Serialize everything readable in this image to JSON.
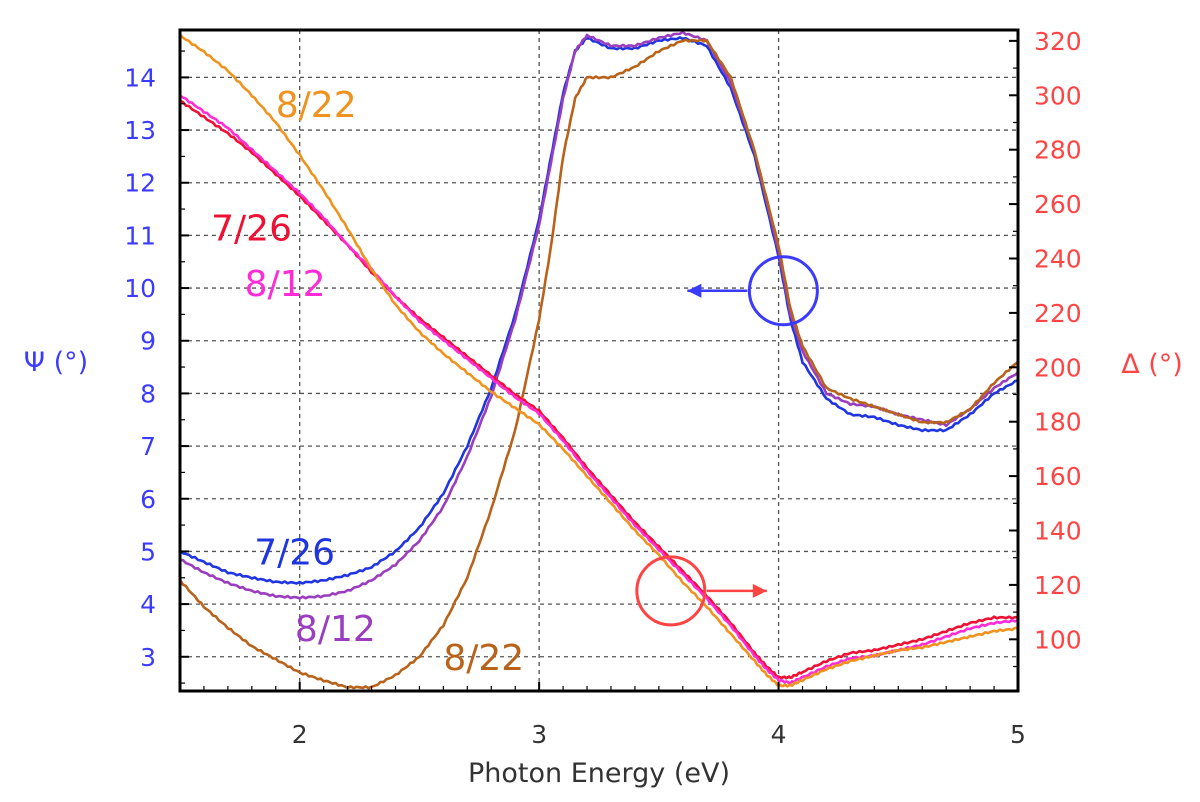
{
  "chart_data": {
    "type": "line",
    "xlabel": "Photon Energy (eV)",
    "ylabel_left": "Ψ (°)",
    "ylabel_right": "Δ (°)",
    "xlim": [
      1.5,
      5.0
    ],
    "ylim_left": [
      2.35,
      14.9
    ],
    "ylim_right": [
      81,
      324
    ],
    "grid": true,
    "colors": {
      "psi_axis": "#3b3bff",
      "delta_axis": "#ff4444",
      "psi_7_26": "#1f35e0",
      "psi_8_12": "#9a3dbf",
      "psi_8_22": "#b8621a",
      "delta_7_26": "#ee1133",
      "delta_8_12": "#ff2bd6",
      "delta_8_22": "#f0921e"
    },
    "x_ticks": [
      "2",
      "3",
      "4",
      "5"
    ],
    "x_tick_values": [
      2,
      3,
      4,
      5
    ],
    "y_left_ticks": [
      "3",
      "4",
      "5",
      "6",
      "7",
      "8",
      "9",
      "10",
      "11",
      "12",
      "13",
      "14"
    ],
    "y_left_tick_values": [
      3,
      4,
      5,
      6,
      7,
      8,
      9,
      10,
      11,
      12,
      13,
      14
    ],
    "y_right_ticks": [
      "100",
      "120",
      "140",
      "160",
      "180",
      "200",
      "220",
      "240",
      "260",
      "280",
      "300",
      "320"
    ],
    "y_right_tick_values": [
      100,
      120,
      140,
      160,
      180,
      200,
      220,
      240,
      260,
      280,
      300,
      320
    ],
    "series": [
      {
        "name": "Ψ 7/26",
        "quantity": "psi",
        "axis": "left",
        "color_key": "psi_7_26",
        "x": [
          1.5,
          1.6,
          1.7,
          1.8,
          1.9,
          2.0,
          2.1,
          2.2,
          2.3,
          2.4,
          2.5,
          2.6,
          2.7,
          2.8,
          2.9,
          3.0,
          3.05,
          3.1,
          3.15,
          3.2,
          3.3,
          3.4,
          3.5,
          3.6,
          3.7,
          3.8,
          3.9,
          4.0,
          4.05,
          4.1,
          4.2,
          4.3,
          4.4,
          4.5,
          4.6,
          4.7,
          4.8,
          4.9,
          5.0
        ],
        "y": [
          5.0,
          4.8,
          4.6,
          4.5,
          4.42,
          4.4,
          4.45,
          4.55,
          4.7,
          5.0,
          5.45,
          6.1,
          7.0,
          8.1,
          9.5,
          11.3,
          12.5,
          13.7,
          14.5,
          14.75,
          14.55,
          14.55,
          14.7,
          14.75,
          14.6,
          13.8,
          12.5,
          10.6,
          9.4,
          8.6,
          7.9,
          7.6,
          7.55,
          7.4,
          7.3,
          7.3,
          7.6,
          8.0,
          8.25
        ]
      },
      {
        "name": "Ψ 8/12",
        "quantity": "psi",
        "axis": "left",
        "color_key": "psi_8_12",
        "x": [
          1.5,
          1.6,
          1.7,
          1.8,
          1.9,
          2.0,
          2.1,
          2.2,
          2.3,
          2.4,
          2.5,
          2.6,
          2.7,
          2.8,
          2.9,
          3.0,
          3.05,
          3.1,
          3.15,
          3.2,
          3.3,
          3.4,
          3.5,
          3.6,
          3.7,
          3.8,
          3.9,
          4.0,
          4.05,
          4.1,
          4.2,
          4.3,
          4.4,
          4.5,
          4.6,
          4.7,
          4.8,
          4.9,
          5.0
        ],
        "y": [
          4.85,
          4.6,
          4.4,
          4.25,
          4.15,
          4.12,
          4.15,
          4.25,
          4.45,
          4.75,
          5.2,
          5.85,
          6.8,
          7.95,
          9.4,
          11.2,
          12.4,
          13.6,
          14.5,
          14.8,
          14.6,
          14.6,
          14.75,
          14.85,
          14.7,
          13.9,
          12.6,
          10.7,
          9.5,
          8.8,
          8.0,
          7.8,
          7.75,
          7.6,
          7.5,
          7.4,
          7.7,
          8.1,
          8.4
        ]
      },
      {
        "name": "Ψ 8/22",
        "quantity": "psi",
        "axis": "left",
        "color_key": "psi_8_22",
        "x": [
          1.5,
          1.6,
          1.7,
          1.8,
          1.9,
          2.0,
          2.1,
          2.2,
          2.3,
          2.4,
          2.5,
          2.6,
          2.7,
          2.8,
          2.9,
          3.0,
          3.05,
          3.1,
          3.15,
          3.2,
          3.3,
          3.4,
          3.5,
          3.6,
          3.7,
          3.8,
          3.9,
          4.0,
          4.05,
          4.1,
          4.2,
          4.3,
          4.4,
          4.5,
          4.6,
          4.7,
          4.8,
          4.9,
          5.0
        ],
        "y": [
          4.45,
          3.95,
          3.55,
          3.2,
          2.95,
          2.7,
          2.55,
          2.42,
          2.42,
          2.65,
          3.0,
          3.6,
          4.5,
          5.8,
          7.3,
          9.4,
          10.8,
          12.5,
          13.6,
          14.0,
          14.0,
          14.2,
          14.5,
          14.7,
          14.7,
          14.0,
          12.6,
          10.8,
          9.6,
          8.9,
          8.1,
          7.9,
          7.75,
          7.6,
          7.45,
          7.45,
          7.7,
          8.2,
          8.6
        ]
      },
      {
        "name": "Δ 7/26",
        "quantity": "delta",
        "axis": "right",
        "color_key": "delta_7_26",
        "x": [
          1.5,
          1.6,
          1.7,
          1.8,
          1.9,
          2.0,
          2.1,
          2.2,
          2.3,
          2.4,
          2.5,
          2.6,
          2.7,
          2.8,
          2.9,
          3.0,
          3.1,
          3.2,
          3.3,
          3.4,
          3.5,
          3.6,
          3.7,
          3.8,
          3.9,
          3.95,
          4.0,
          4.05,
          4.1,
          4.2,
          4.3,
          4.4,
          4.5,
          4.6,
          4.7,
          4.8,
          4.9,
          5.0
        ],
        "y": [
          298,
          292,
          286,
          279,
          271,
          263,
          254,
          245,
          235,
          226,
          218,
          211,
          204,
          197,
          190,
          184,
          174,
          163,
          153,
          143,
          134,
          125,
          116,
          106,
          95,
          90,
          86,
          86,
          88,
          92,
          95,
          96,
          98,
          100,
          103,
          106,
          108,
          108
        ]
      },
      {
        "name": "Δ 8/12",
        "quantity": "delta",
        "axis": "right",
        "color_key": "delta_8_12",
        "x": [
          1.5,
          1.6,
          1.7,
          1.8,
          1.9,
          2.0,
          2.1,
          2.2,
          2.3,
          2.4,
          2.5,
          2.6,
          2.7,
          2.8,
          2.9,
          3.0,
          3.1,
          3.2,
          3.3,
          3.4,
          3.5,
          3.6,
          3.7,
          3.8,
          3.9,
          3.95,
          4.0,
          4.05,
          4.1,
          4.2,
          4.3,
          4.4,
          4.5,
          4.6,
          4.7,
          4.8,
          4.9,
          5.0
        ],
        "y": [
          300,
          294,
          288,
          280,
          272,
          264,
          255,
          245,
          236,
          226,
          217,
          210,
          203,
          196,
          189,
          183,
          173,
          162,
          152,
          142,
          133,
          124,
          115,
          105,
          94,
          89,
          85,
          84,
          86,
          90,
          93,
          94,
          96,
          98,
          101,
          104,
          106,
          107
        ]
      },
      {
        "name": "Δ 8/22",
        "quantity": "delta",
        "axis": "right",
        "color_key": "delta_8_22",
        "x": [
          1.5,
          1.6,
          1.7,
          1.8,
          1.9,
          2.0,
          2.1,
          2.2,
          2.3,
          2.4,
          2.5,
          2.6,
          2.7,
          2.8,
          2.9,
          3.0,
          3.1,
          3.2,
          3.3,
          3.4,
          3.5,
          3.6,
          3.7,
          3.8,
          3.9,
          3.95,
          4.0,
          4.05,
          4.1,
          4.2,
          4.3,
          4.4,
          4.5,
          4.6,
          4.7,
          4.8,
          4.9,
          5.0
        ],
        "y": [
          322,
          316,
          309,
          300,
          290,
          278,
          265,
          251,
          236,
          223,
          213,
          205,
          198,
          191,
          185,
          179,
          170,
          160,
          150,
          140,
          131,
          121,
          112,
          102,
          92,
          87,
          83,
          83,
          85,
          89,
          92,
          94,
          96,
          97,
          99,
          101,
          103,
          104
        ]
      }
    ],
    "annotations": [
      {
        "text": "8/22",
        "color_key": "delta_8_22",
        "x": 1.9,
        "y": 13.25,
        "axis": "left"
      },
      {
        "text": "7/26",
        "color_key": "delta_7_26",
        "x": 1.63,
        "y": 10.9,
        "axis": "left"
      },
      {
        "text": "8/12",
        "color_key": "delta_8_12",
        "x": 1.77,
        "y": 9.85,
        "axis": "left"
      },
      {
        "text": "7/26",
        "color_key": "psi_7_26",
        "x": 1.81,
        "y": 4.75,
        "axis": "left"
      },
      {
        "text": "8/12",
        "color_key": "psi_8_12",
        "x": 1.98,
        "y": 3.3,
        "axis": "left"
      },
      {
        "text": "8/22",
        "color_key": "psi_8_22",
        "x": 2.6,
        "y": 2.75,
        "axis": "left"
      }
    ],
    "markers": [
      {
        "label": "Ψ curves read on left axis",
        "color_key": "psi_axis",
        "x": 4.02,
        "y": 9.95,
        "axis": "left",
        "arrow": "left"
      },
      {
        "label": "Δ curves read on right axis",
        "color_key": "delta_axis",
        "x": 3.55,
        "y": 4.25,
        "axis": "left",
        "arrow": "right"
      }
    ]
  }
}
